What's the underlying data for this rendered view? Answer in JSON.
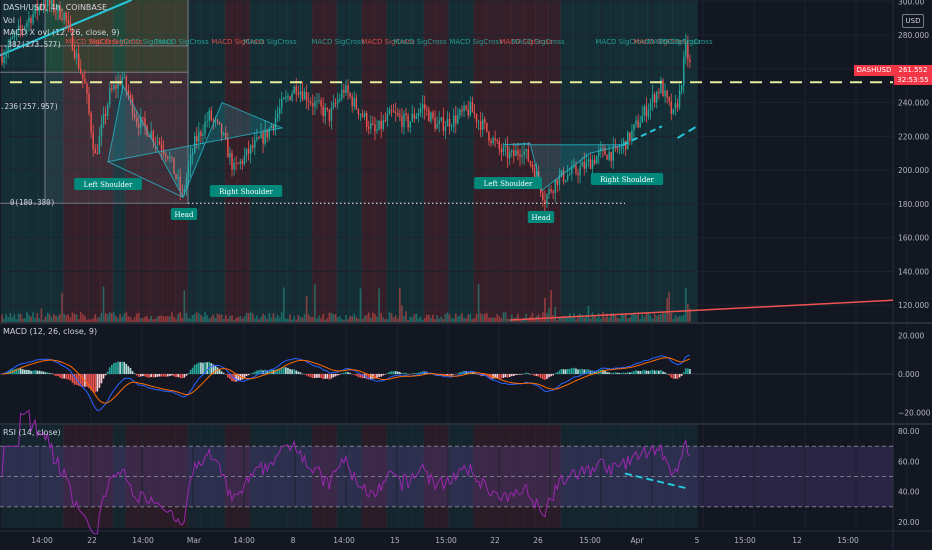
{
  "header": {
    "symbol_line": "DASH/USD, 4h, COINBASE",
    "vol_label": "Vol",
    "macd_x_label": "MACD X ovl (12, 26, close, 9)",
    "currency_badge": "USD"
  },
  "fib_labels": {
    "f0382": ".382(273.577)",
    "f0236": ".236(257.957)",
    "f0": "0(180.380)"
  },
  "pattern_labels": {
    "left_shoulder_1": "Left Shoulder",
    "head_1": "Head",
    "right_shoulder_1": "Right Shoulder",
    "left_shoulder_2": "Left Shoulder",
    "head_2": "Head",
    "right_shoulder_2": "Right Shoulder"
  },
  "price_axis": {
    "ticks": [
      "300.00",
      "280.000",
      "260.000",
      "240.000",
      "220.000",
      "200.000",
      "180.000",
      "160.000",
      "140.000",
      "120.000"
    ],
    "tick_values": [
      300,
      280,
      260,
      240,
      220,
      200,
      180,
      160,
      140,
      120
    ],
    "range": [
      116,
      296
    ]
  },
  "price_tag": {
    "symbol": "DASHUSD",
    "price": "261.552",
    "countdown": "32:53:55",
    "value": 261.552,
    "color": "#f23645"
  },
  "macd_panel": {
    "title": "MACD (12, 26, close, 9)",
    "ticks": [
      "20.000",
      "0.000",
      "−20.000"
    ],
    "tick_values": [
      20,
      0,
      -20
    ],
    "range": [
      -26,
      26
    ]
  },
  "rsi_panel": {
    "title": "RSI (14, close)",
    "ticks": [
      "80.00",
      "60.00",
      "40.00",
      "20.00"
    ],
    "tick_values": [
      80,
      60,
      40,
      20
    ],
    "range": [
      16,
      84
    ],
    "overbought": 70,
    "oversold": 30
  },
  "time_axis": {
    "labels": [
      "14:00",
      "22",
      "14:00",
      "Mar",
      "14:00",
      "8",
      "14:00",
      "15",
      "15:00",
      "22",
      "26",
      "15:00",
      "Apr",
      "5",
      "15:00",
      "12",
      "15:00",
      "15:00"
    ]
  },
  "macd_cross_labels": [
    "MACD SigCross",
    "MACD SigCross",
    "MACD SigCross",
    "MACD SigCross",
    "MACD SigCross",
    "MACD SigCross",
    "MACD SigCross",
    "MACD SigCross",
    "MACD SigCross",
    "MACD SigCross",
    "MACD SigCross",
    "MACD SigCross",
    "MACD SigCross",
    "MACD SigCross",
    "MACD SigCross",
    "MACD SigCross"
  ],
  "colors": {
    "up": "#26a69a",
    "down": "#ef5350",
    "macd_line": "#2962ff",
    "signal_line": "#ff6d00",
    "rsi_line": "#9c27b0",
    "neckline": "#e6ee9c",
    "trend_dash": "#26c6da",
    "label_bg": "#00897b",
    "background": "#131722"
  },
  "chart_data": {
    "type": "candlestick",
    "symbol": "DASH/USD",
    "timeframe": "4h",
    "exchange": "COINBASE",
    "x_labels": [
      "14:00",
      "22",
      "14:00",
      "Mar",
      "14:00",
      "8",
      "14:00",
      "15",
      "15:00",
      "22",
      "26",
      "15:00",
      "Apr",
      "5",
      "15:00",
      "12",
      "15:00",
      "15:00"
    ],
    "close_series": [
      {
        "i": 0,
        "c": 268
      },
      {
        "i": 10,
        "c": 285
      },
      {
        "i": 20,
        "c": 300
      },
      {
        "i": 30,
        "c": 292
      },
      {
        "i": 40,
        "c": 250
      },
      {
        "i": 45,
        "c": 208
      },
      {
        "i": 52,
        "c": 245
      },
      {
        "i": 58,
        "c": 255
      },
      {
        "i": 65,
        "c": 230
      },
      {
        "i": 72,
        "c": 222
      },
      {
        "i": 80,
        "c": 210
      },
      {
        "i": 87,
        "c": 185
      },
      {
        "i": 93,
        "c": 216
      },
      {
        "i": 100,
        "c": 232
      },
      {
        "i": 106,
        "c": 222
      },
      {
        "i": 112,
        "c": 200
      },
      {
        "i": 120,
        "c": 212
      },
      {
        "i": 128,
        "c": 222
      },
      {
        "i": 135,
        "c": 238
      },
      {
        "i": 142,
        "c": 250
      },
      {
        "i": 150,
        "c": 240
      },
      {
        "i": 158,
        "c": 232
      },
      {
        "i": 165,
        "c": 248
      },
      {
        "i": 172,
        "c": 236
      },
      {
        "i": 180,
        "c": 222
      },
      {
        "i": 188,
        "c": 233
      },
      {
        "i": 196,
        "c": 228
      },
      {
        "i": 203,
        "c": 238
      },
      {
        "i": 210,
        "c": 226
      },
      {
        "i": 218,
        "c": 230
      },
      {
        "i": 226,
        "c": 236
      },
      {
        "i": 233,
        "c": 225
      },
      {
        "i": 240,
        "c": 212
      },
      {
        "i": 246,
        "c": 208
      },
      {
        "i": 251,
        "c": 213
      },
      {
        "i": 257,
        "c": 200
      },
      {
        "i": 262,
        "c": 183
      },
      {
        "i": 268,
        "c": 195
      },
      {
        "i": 275,
        "c": 198
      },
      {
        "i": 282,
        "c": 203
      },
      {
        "i": 289,
        "c": 210
      },
      {
        "i": 296,
        "c": 210
      },
      {
        "i": 302,
        "c": 218
      },
      {
        "i": 308,
        "c": 230
      },
      {
        "i": 313,
        "c": 240
      },
      {
        "i": 318,
        "c": 250
      },
      {
        "i": 321,
        "c": 240
      },
      {
        "i": 324,
        "c": 232
      },
      {
        "i": 327,
        "c": 245
      },
      {
        "i": 330,
        "c": 272
      },
      {
        "i": 332,
        "c": 262
      }
    ],
    "neckline_level": 252,
    "fib_levels": {
      "0.382": 273.577,
      "0.236": 257.957,
      "0": 180.38
    },
    "head_low": 180.38,
    "last_price": 261.552,
    "ylim": [
      116,
      296
    ],
    "patterns": [
      "Left Shoulder",
      "Head",
      "Right Shoulder",
      "Left Shoulder",
      "Head",
      "Right Shoulder"
    ],
    "macd_ylim": [
      -26,
      26
    ],
    "rsi_ylim": [
      16,
      84
    ]
  }
}
